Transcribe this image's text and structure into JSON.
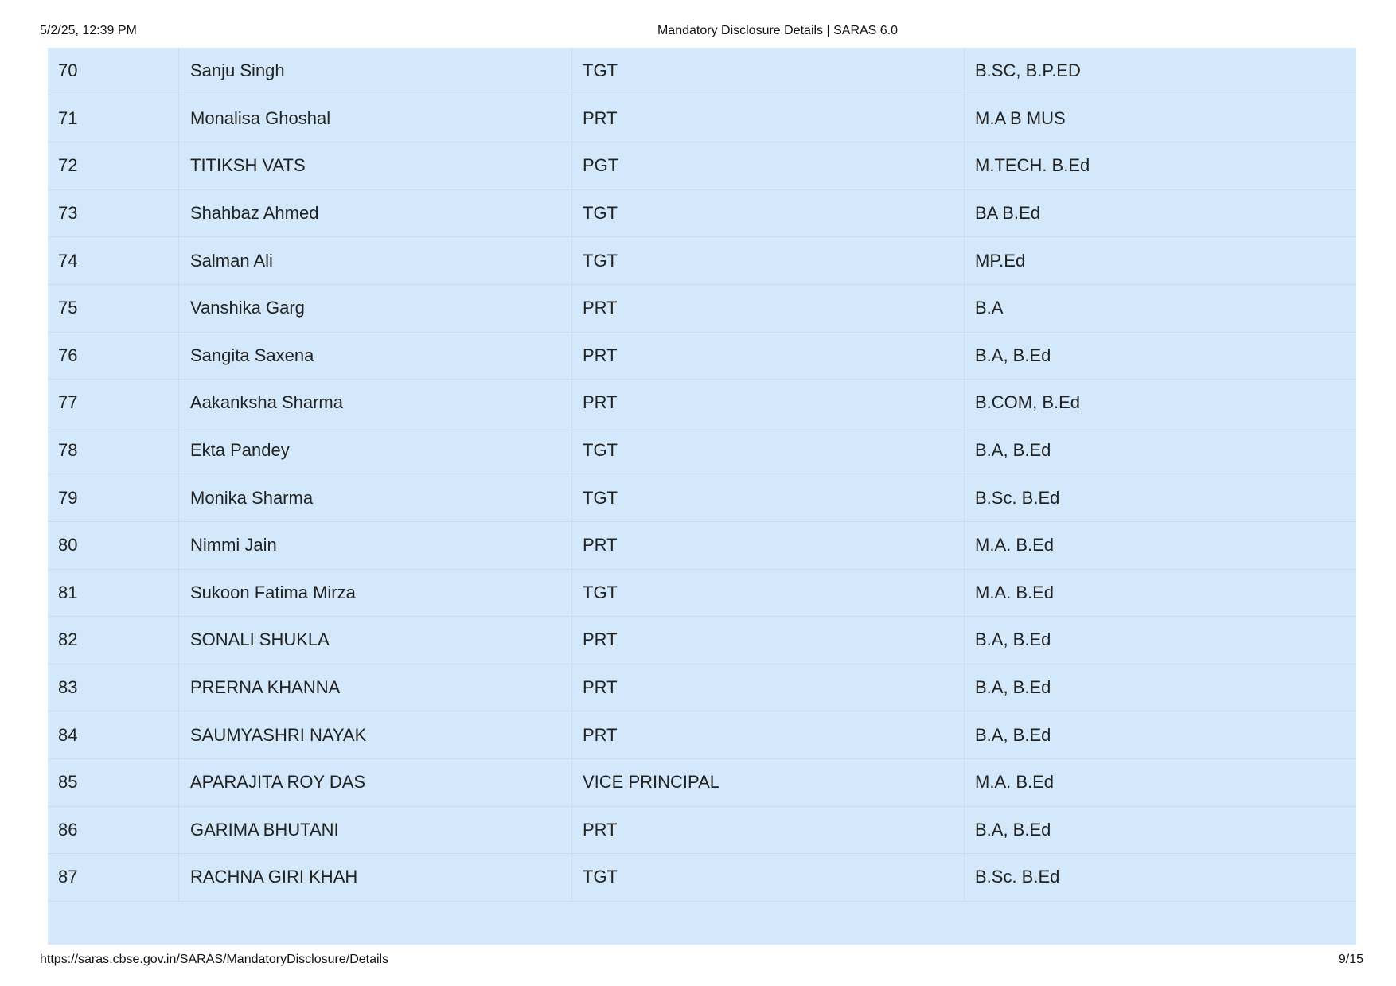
{
  "header": {
    "datetime": "5/2/25, 12:39 PM",
    "title": "Mandatory Disclosure Details | SARAS 6.0"
  },
  "footer": {
    "url": "https://saras.cbse.gov.in/SARAS/MandatoryDisclosure/Details",
    "page": "9/15"
  },
  "rows": [
    [
      "70",
      "Sanju Singh",
      "TGT",
      "B.SC, B.P.ED"
    ],
    [
      "71",
      "Monalisa Ghoshal",
      "PRT",
      "M.A B MUS"
    ],
    [
      "72",
      "TITIKSH VATS",
      "PGT",
      "M.TECH. B.Ed"
    ],
    [
      "73",
      "Shahbaz Ahmed",
      "TGT",
      "BA B.Ed"
    ],
    [
      "74",
      "Salman Ali",
      "TGT",
      "MP.Ed"
    ],
    [
      "75",
      "Vanshika Garg",
      "PRT",
      "B.A"
    ],
    [
      "76",
      "Sangita Saxena",
      "PRT",
      "B.A, B.Ed"
    ],
    [
      "77",
      "Aakanksha Sharma",
      "PRT",
      "B.COM, B.Ed"
    ],
    [
      "78",
      "Ekta Pandey",
      "TGT",
      "B.A, B.Ed"
    ],
    [
      "79",
      "Monika Sharma",
      "TGT",
      "B.Sc. B.Ed"
    ],
    [
      "80",
      "Nimmi Jain",
      "PRT",
      "M.A. B.Ed"
    ],
    [
      "81",
      "Sukoon Fatima Mirza",
      "TGT",
      "M.A. B.Ed"
    ],
    [
      "82",
      "SONALI SHUKLA",
      "PRT",
      "B.A, B.Ed"
    ],
    [
      "83",
      "PRERNA KHANNA",
      "PRT",
      "B.A, B.Ed"
    ],
    [
      "84",
      "SAUMYASHRI NAYAK",
      "PRT",
      "B.A, B.Ed"
    ],
    [
      "85",
      "APARAJITA ROY DAS",
      "VICE PRINCIPAL",
      "M.A. B.Ed"
    ],
    [
      "86",
      "GARIMA BHUTANI",
      "PRT",
      "B.A, B.Ed"
    ],
    [
      "87",
      "RACHNA GIRI KHAH",
      "TGT",
      "B.Sc. B.Ed"
    ]
  ]
}
